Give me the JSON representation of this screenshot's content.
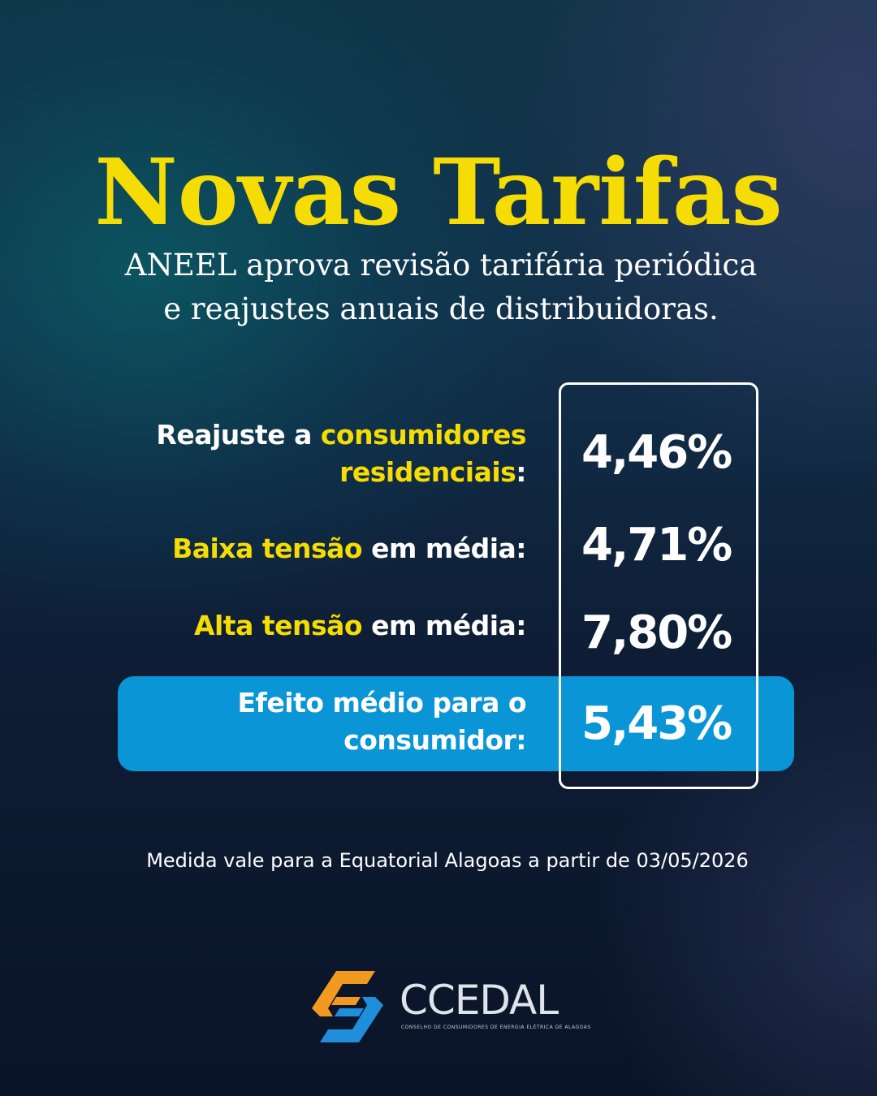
{
  "header": {
    "title": "Novas Tarifas",
    "subtitle_line1": "ANEEL aprova revisão tarifária periódica",
    "subtitle_line2": "e reajustes anuais de distribuidoras."
  },
  "rates": [
    {
      "label_line1_plain": "Reajuste a ",
      "label_line1_highlight": "consumidores",
      "label_line2_highlight": "residenciais",
      "label_line2_plain": ":",
      "value": "4,46%",
      "percent": 4.46
    },
    {
      "label_highlight": "Baixa tensão",
      "label_plain": " em média:",
      "value": "4,71%",
      "percent": 4.71
    },
    {
      "label_highlight": "Alta tensão",
      "label_plain": " em média:",
      "value": "7,80%",
      "percent": 7.8
    },
    {
      "label_line1": "Efeito médio para o",
      "label_line2": "consumidor:",
      "value": "5,43%",
      "percent": 5.43
    }
  ],
  "footnote": "Medida vale para a Equatorial Alagoas a partir de 03/05/2026",
  "logo": {
    "name": "CCEDAL",
    "tagline": "CONSELHO DE CONSUMIDORES DE ENERGIA ELÉTRICA DE ALAGOAS",
    "icon": "ccedal-logo-icon"
  },
  "colors": {
    "accent_yellow": "#f5dc05",
    "highlight_blue": "#0a95d6",
    "logo_orange": "#f29a1f",
    "logo_blue": "#1f8fdc"
  }
}
